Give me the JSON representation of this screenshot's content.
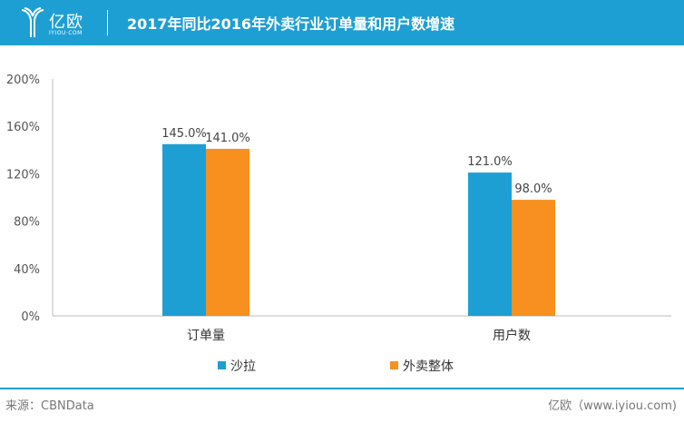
{
  "header": {
    "logo_cn": "亿欧",
    "logo_en": "IYIOU·COM",
    "title": "2017年同比2016年外卖行业订单量和用户数增速"
  },
  "footer": {
    "source": "来源：CBNData",
    "credit": "亿欧（www.iyiou.com)"
  },
  "colors": {
    "header": "#1e9fd4",
    "series1": "#1e9fd4",
    "series2": "#f7901e"
  },
  "chart_data": {
    "type": "bar",
    "categories": [
      "订单量",
      "用户数"
    ],
    "series": [
      {
        "name": "沙拉",
        "values": [
          145.0,
          121.0
        ],
        "labels": [
          "145.0%",
          "121.0%"
        ]
      },
      {
        "name": "外卖整体",
        "values": [
          141.0,
          98.0
        ],
        "labels": [
          "141.0%",
          "98.0%"
        ]
      }
    ],
    "ylim": [
      0,
      200
    ],
    "yticks": [
      "0%",
      "40%",
      "80%",
      "120%",
      "160%",
      "200%"
    ],
    "legend": "bottom",
    "grid": false
  }
}
